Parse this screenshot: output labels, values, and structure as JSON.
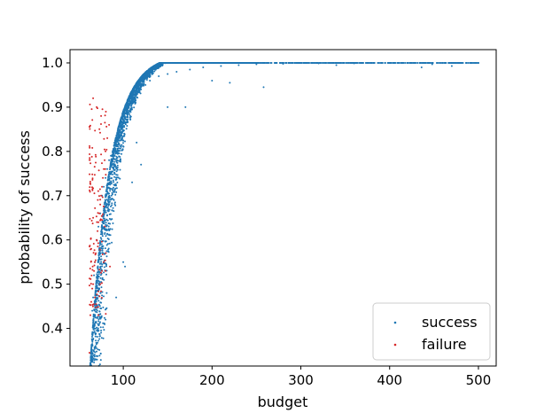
{
  "chart_data": {
    "type": "scatter",
    "title": "",
    "xlabel": "budget",
    "ylabel": "probability of success",
    "xlim": [
      40,
      520
    ],
    "ylim": [
      0.315,
      1.03
    ],
    "xticks": [
      100,
      200,
      300,
      400,
      500
    ],
    "yticks": [
      0.4,
      0.5,
      0.6,
      0.7,
      0.8,
      0.9,
      1.0
    ],
    "xtick_labels": [
      "100",
      "200",
      "300",
      "400",
      "500"
    ],
    "ytick_labels": [
      "0.4",
      "0.5",
      "0.6",
      "0.7",
      "0.8",
      "0.9",
      "1.0"
    ],
    "grid": false,
    "legend_position": "lower-right",
    "series": [
      {
        "name": "success",
        "color": "#1f77b4",
        "x_range": [
          62,
          500
        ],
        "y_range": [
          0.43,
          1.0
        ],
        "points": [
          [
            65,
            0.44
          ],
          [
            66,
            0.47
          ],
          [
            67,
            0.52
          ],
          [
            68,
            0.55
          ],
          [
            70,
            0.6
          ],
          [
            72,
            0.63
          ],
          [
            74,
            0.66
          ],
          [
            76,
            0.7
          ],
          [
            78,
            0.72
          ],
          [
            80,
            0.74
          ],
          [
            82,
            0.76
          ],
          [
            84,
            0.78
          ],
          [
            86,
            0.79
          ],
          [
            88,
            0.8
          ],
          [
            90,
            0.82
          ],
          [
            95,
            0.85
          ],
          [
            100,
            0.88
          ],
          [
            105,
            0.9
          ],
          [
            110,
            0.92
          ],
          [
            115,
            0.93
          ],
          [
            120,
            0.94
          ],
          [
            125,
            0.95
          ],
          [
            130,
            0.96
          ],
          [
            140,
            0.97
          ],
          [
            150,
            0.975
          ],
          [
            160,
            0.98
          ],
          [
            175,
            0.985
          ],
          [
            190,
            0.99
          ],
          [
            210,
            0.993
          ],
          [
            230,
            0.995
          ],
          [
            250,
            0.997
          ],
          [
            280,
            0.998
          ],
          [
            320,
            0.999
          ],
          [
            360,
            0.999
          ],
          [
            400,
            1.0
          ],
          [
            440,
            1.0
          ],
          [
            480,
            1.0
          ],
          [
            500,
            1.0
          ],
          [
            92,
            0.47
          ],
          [
            100,
            0.55
          ],
          [
            102,
            0.54
          ],
          [
            110,
            0.73
          ],
          [
            115,
            0.82
          ],
          [
            120,
            0.77
          ],
          [
            150,
            0.9
          ],
          [
            170,
            0.9
          ],
          [
            200,
            0.96
          ],
          [
            220,
            0.955
          ],
          [
            258,
            0.945
          ],
          [
            340,
            0.995
          ],
          [
            436,
            0.99
          ],
          [
            470,
            0.993
          ],
          [
            448,
            0.997
          ]
        ]
      },
      {
        "name": "failure",
        "color": "#d62728",
        "x_range": [
          62,
          85
        ],
        "y_range": [
          0.345,
          0.92
        ],
        "points": [
          [
            62,
            0.345
          ],
          [
            63,
            0.43
          ],
          [
            64,
            0.46
          ],
          [
            65,
            0.49
          ],
          [
            66,
            0.5
          ],
          [
            67,
            0.53
          ],
          [
            68,
            0.55
          ],
          [
            69,
            0.57
          ],
          [
            70,
            0.6
          ],
          [
            71,
            0.62
          ],
          [
            72,
            0.64
          ],
          [
            73,
            0.66
          ],
          [
            74,
            0.68
          ],
          [
            75,
            0.7
          ],
          [
            76,
            0.72
          ],
          [
            77,
            0.74
          ],
          [
            78,
            0.76
          ],
          [
            79,
            0.78
          ],
          [
            80,
            0.8
          ],
          [
            82,
            0.83
          ],
          [
            84,
            0.86
          ],
          [
            66,
            0.92
          ],
          [
            70,
            0.9
          ],
          [
            75,
            0.88
          ],
          [
            78,
            0.55
          ],
          [
            80,
            0.53
          ],
          [
            85,
            0.54
          ],
          [
            72,
            0.43
          ],
          [
            68,
            0.47
          ],
          [
            64,
            0.58
          ],
          [
            66,
            0.65
          ],
          [
            74,
            0.5
          ],
          [
            76,
            0.53
          ]
        ]
      }
    ],
    "n_success_points_total": 4000,
    "n_failure_points_total": 120
  }
}
